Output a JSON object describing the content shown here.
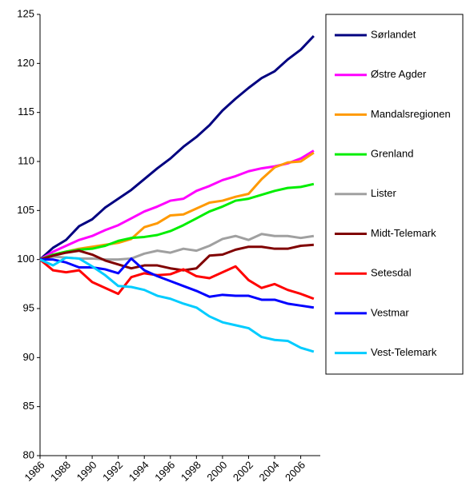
{
  "chart_data": {
    "type": "line",
    "x": [
      1986,
      1987,
      1988,
      1989,
      1990,
      1991,
      1992,
      1993,
      1994,
      1995,
      1996,
      1997,
      1998,
      1999,
      2000,
      2001,
      2002,
      2003,
      2004,
      2005,
      2006,
      2007
    ],
    "xlim": [
      1986,
      2007.5
    ],
    "xticks": [
      1986,
      1988,
      1990,
      1992,
      1994,
      1996,
      1998,
      2000,
      2002,
      2004,
      2006
    ],
    "ylim": [
      80,
      125
    ],
    "yticks": [
      80,
      85,
      90,
      95,
      100,
      105,
      110,
      115,
      120,
      125
    ],
    "grid": false,
    "legend": "right",
    "series": [
      {
        "name": "Sørlandet",
        "color": "#000080",
        "values": [
          100,
          101.2,
          102,
          103.4,
          104.1,
          105.3,
          106.2,
          107.1,
          108.2,
          109.3,
          110.3,
          111.5,
          112.5,
          113.7,
          115.2,
          116.4,
          117.5,
          118.5,
          119.2,
          120.4,
          121.4,
          122.8
        ]
      },
      {
        "name": "Østre Agder",
        "color": "#ff00ff",
        "values": [
          100,
          100.8,
          101.4,
          102,
          102.4,
          103,
          103.5,
          104.2,
          104.9,
          105.4,
          106,
          106.2,
          107,
          107.5,
          108.1,
          108.5,
          109,
          109.3,
          109.5,
          109.8,
          110.3,
          111.1
        ]
      },
      {
        "name": "Mandalsregionen",
        "color": "#ff9900",
        "values": [
          100,
          100.5,
          100.8,
          101.1,
          101.3,
          101.5,
          101.7,
          102.1,
          103.3,
          103.7,
          104.5,
          104.6,
          105.2,
          105.8,
          106,
          106.4,
          106.7,
          108.2,
          109.4,
          109.9,
          110,
          110.9
        ]
      },
      {
        "name": "Grenland",
        "color": "#00ee00",
        "values": [
          100,
          100.5,
          100.8,
          101,
          101.1,
          101.4,
          101.9,
          102.2,
          102.3,
          102.5,
          102.9,
          103.5,
          104.2,
          104.9,
          105.4,
          106,
          106.2,
          106.6,
          107,
          107.3,
          107.4,
          107.7
        ]
      },
      {
        "name": "Lister",
        "color": "#a0a0a0",
        "values": [
          100,
          100.3,
          100.2,
          100.1,
          100.1,
          100,
          100,
          100.1,
          100.6,
          100.9,
          100.7,
          101.1,
          100.9,
          101.4,
          102.1,
          102.4,
          102,
          102.6,
          102.4,
          102.4,
          102.2,
          102.4
        ]
      },
      {
        "name": "Midt-Telemark",
        "color": "#800000",
        "values": [
          100,
          100.4,
          100.7,
          100.9,
          100.5,
          99.9,
          99.5,
          99.1,
          99.4,
          99.4,
          99.1,
          98.9,
          99.1,
          100.4,
          100.5,
          101,
          101.3,
          101.3,
          101.1,
          101.1,
          101.4,
          101.5
        ]
      },
      {
        "name": "Setesdal",
        "color": "#ff0000",
        "values": [
          100,
          98.9,
          98.7,
          98.9,
          97.7,
          97.1,
          96.5,
          98.2,
          98.6,
          98.4,
          98.5,
          99,
          98.3,
          98.1,
          98.7,
          99.3,
          97.9,
          97.1,
          97.5,
          96.9,
          96.5,
          96
        ]
      },
      {
        "name": "Vestmar",
        "color": "#0000ff",
        "values": [
          100,
          100,
          99.7,
          99.2,
          99.2,
          99,
          98.6,
          100.1,
          98.9,
          98.3,
          97.8,
          97.3,
          96.8,
          96.2,
          96.4,
          96.3,
          96.3,
          95.9,
          95.9,
          95.5,
          95.3,
          95.1
        ]
      },
      {
        "name": "Vest-Telemark",
        "color": "#00ccff",
        "values": [
          100,
          99.4,
          100.2,
          100.1,
          99.3,
          98.4,
          97.3,
          97.2,
          96.9,
          96.3,
          96,
          95.5,
          95.1,
          94.2,
          93.6,
          93.3,
          93,
          92.1,
          91.8,
          91.7,
          91,
          90.6
        ]
      }
    ]
  }
}
